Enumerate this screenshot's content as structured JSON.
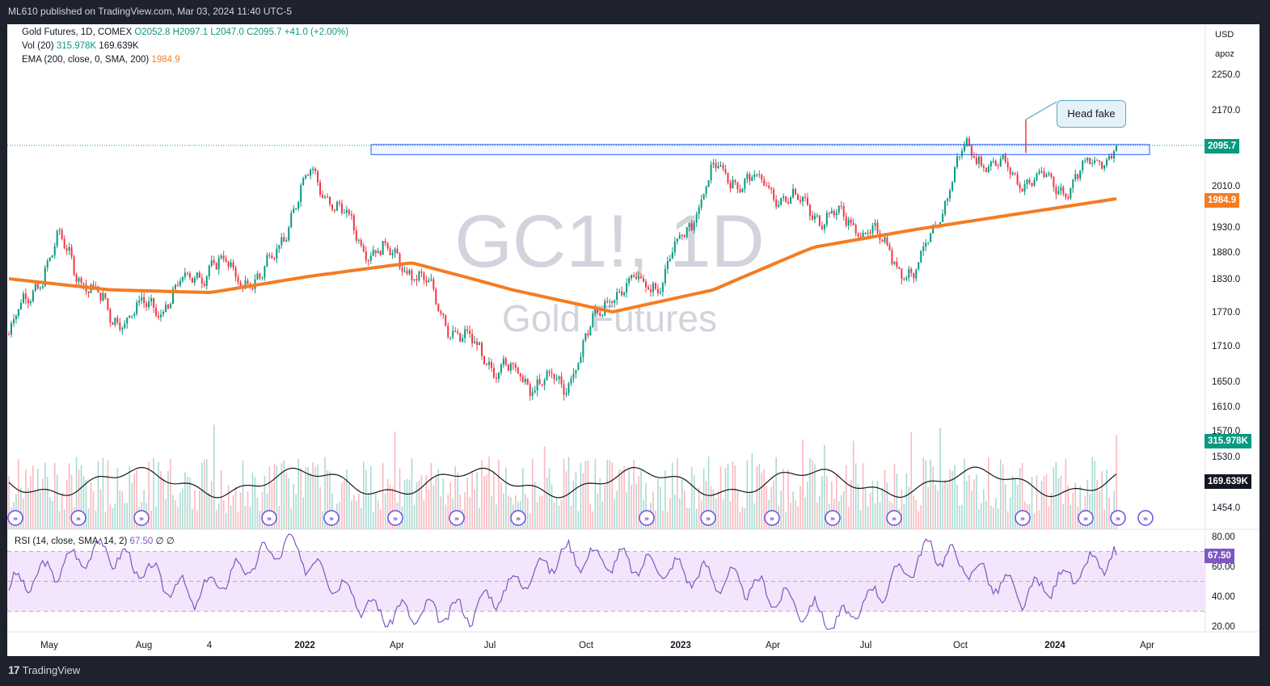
{
  "header": {
    "published": "ML610 published on TradingView.com, Mar 03, 2024 11:40 UTC-5"
  },
  "legend": {
    "title": "Gold Futures, 1D, COMEX",
    "ohlc": "O2052.8  H2097.1  L2047.0  C2095.7  +41.0 (+2.00%)",
    "vol_label": "Vol (20)",
    "vol_value": "315.978K",
    "vol_ma": "169.639K",
    "ema_label": "EMA (200, close, 0, SMA, 200)",
    "ema_value": "1984.9",
    "rsi_label": "RSI (14, close, SMA, 14, 2)",
    "rsi_value": "67.50",
    "rsi_extra": "∅ ∅"
  },
  "watermark": {
    "symbol": "GC1!, 1D",
    "name": "Gold Futures"
  },
  "axis": {
    "currency": "USD",
    "mode": "apoz",
    "price_ticks": [
      "2250.0",
      "2170.0",
      "2010.0",
      "1930.0",
      "1880.0",
      "1830.0",
      "1770.0",
      "1710.0",
      "1650.0",
      "1610.0",
      "1570.0",
      "1530.0",
      "1454.0"
    ],
    "rsi_ticks": [
      "80.00",
      "60.00",
      "40.00",
      "20.00"
    ],
    "time_ticks": [
      "May",
      "Aug",
      "4",
      "2022",
      "Apr",
      "Jul",
      "Oct",
      "2023",
      "Apr",
      "Jul",
      "Oct",
      "2024",
      "Apr"
    ]
  },
  "price_tags": {
    "last_price": "2095.7",
    "ema": "1984.9",
    "volume": "315.978K",
    "volume_ma": "169.639K",
    "rsi": "67.50"
  },
  "annotation": {
    "text": "Head fake"
  },
  "footer": {
    "brand": "TradingView"
  },
  "colors": {
    "up": "#089981",
    "down": "#f23645",
    "ema": "#f57c20",
    "rsi": "#7e57c2",
    "rsi_band": "#f3e5fb",
    "resistance": "#2962ff"
  },
  "chart_data": {
    "type": "candlestick",
    "symbol": "GC1!",
    "timeframe": "1D",
    "exchange": "COMEX",
    "resistance_zone": [
      2078,
      2096
    ],
    "series": [
      {
        "name": "Price",
        "x": [
          "2021-04",
          "2021-06",
          "2021-08",
          "2021-09",
          "2021-11",
          "2022-01",
          "2022-03",
          "2022-04",
          "2022-06",
          "2022-07",
          "2022-09",
          "2022-11",
          "2022-12",
          "2023-02",
          "2023-04",
          "2023-05",
          "2023-07",
          "2023-09",
          "2023-10",
          "2023-12",
          "2024-01",
          "2024-02",
          "2024-03"
        ],
        "values": [
          1730,
          1900,
          1760,
          1780,
          1860,
          1820,
          2040,
          1900,
          1850,
          1720,
          1660,
          1640,
          1810,
          1830,
          2040,
          2010,
          1960,
          1930,
          1830,
          2090,
          2030,
          2010,
          2095.7
        ]
      },
      {
        "name": "EMA 200",
        "x": [
          "2021-04",
          "2021-08",
          "2021-12",
          "2022-03",
          "2022-06",
          "2022-09",
          "2022-11",
          "2023-02",
          "2023-05",
          "2023-09",
          "2023-12",
          "2024-03"
        ],
        "values": [
          1830,
          1810,
          1805,
          1835,
          1860,
          1810,
          1770,
          1810,
          1890,
          1925,
          1955,
          1984.9
        ]
      },
      {
        "name": "Vol (20)",
        "last": 315978,
        "ma": 169639
      },
      {
        "name": "RSI 14",
        "x": [
          "2021-04",
          "2021-06",
          "2021-10",
          "2022-03",
          "2022-07",
          "2022-10",
          "2023-01",
          "2023-04",
          "2023-07",
          "2023-10",
          "2023-12",
          "2024-02",
          "2024-03"
        ],
        "values": [
          45,
          72,
          40,
          75,
          28,
          30,
          68,
          60,
          48,
          22,
          72,
          40,
          67.5
        ]
      }
    ],
    "ylim": [
      1454,
      2290
    ],
    "rsi_ylim": [
      17,
      83
    ]
  }
}
